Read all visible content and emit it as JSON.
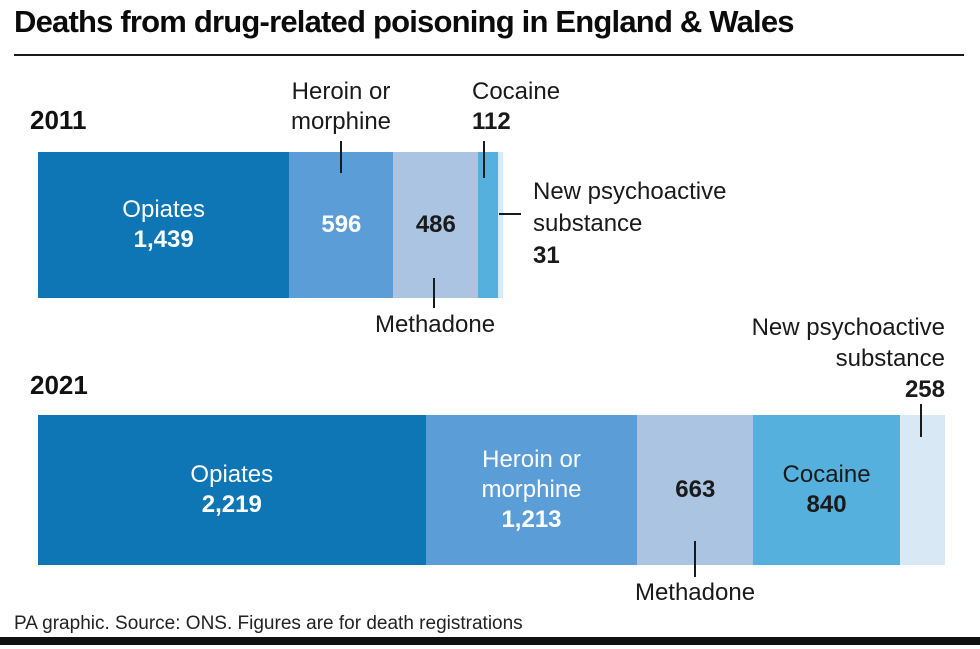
{
  "title": "Deaths from drug-related poisoning in England & Wales",
  "source_note": "PA graphic. Source: ONS. Figures are for death registrations",
  "colors": {
    "opiates": "#0e76b5",
    "heroin_or_morphine": "#5b9dd6",
    "methadone": "#aac4e1",
    "cocaine": "#56b0dd",
    "new_psychoactive_substance": "#d8e8f5",
    "text_dark": "#1a1a1a",
    "text_light": "#ffffff",
    "rule": "#1a1a1a"
  },
  "chart_data": {
    "type": "bar",
    "subtype": "horizontal-stacked",
    "unit": "deaths",
    "title": "Deaths from drug-related poisoning in England & Wales",
    "bars": [
      {
        "year": "2011",
        "segments": [
          {
            "drug": "Opiates",
            "deaths": 1439,
            "color": "#0e76b5",
            "inside_label": [
              "Opiates",
              "1,439"
            ],
            "text_color": "#ffffff"
          },
          {
            "drug": "Heroin or morphine",
            "deaths": 596,
            "color": "#5b9dd6",
            "inside_label": [
              "596"
            ],
            "text_color": "#ffffff"
          },
          {
            "drug": "Methadone",
            "deaths": 486,
            "color": "#aac4e1",
            "inside_label": [
              "486"
            ],
            "text_color": "#1a1a1a"
          },
          {
            "drug": "Cocaine",
            "deaths": 112,
            "color": "#56b0dd",
            "inside_label": [],
            "text_color": "#1a1a1a"
          },
          {
            "drug": "New psychoactive substance",
            "deaths": 31,
            "color": "#d8e8f5",
            "inside_label": [],
            "text_color": "#1a1a1a"
          }
        ]
      },
      {
        "year": "2021",
        "segments": [
          {
            "drug": "Opiates",
            "deaths": 2219,
            "color": "#0e76b5",
            "inside_label": [
              "Opiates",
              "2,219"
            ],
            "text_color": "#ffffff"
          },
          {
            "drug": "Heroin or morphine",
            "deaths": 1213,
            "color": "#5b9dd6",
            "inside_label": [
              "Heroin or",
              "morphine",
              "1,213"
            ],
            "text_color": "#ffffff"
          },
          {
            "drug": "Methadone",
            "deaths": 663,
            "color": "#aac4e1",
            "inside_label": [
              "663"
            ],
            "text_color": "#1a1a1a"
          },
          {
            "drug": "Cocaine",
            "deaths": 840,
            "color": "#56b0dd",
            "inside_label": [
              "Cocaine",
              "840"
            ],
            "text_color": "#1a1a1a"
          },
          {
            "drug": "New psychoactive substance",
            "deaths": 258,
            "color": "#d8e8f5",
            "inside_label": [],
            "text_color": "#1a1a1a"
          }
        ]
      }
    ]
  },
  "callouts": {
    "year_2011": "2011",
    "year_2021": "2021",
    "heroin_2011": [
      "Heroin or",
      "morphine"
    ],
    "cocaine_2011": [
      "Cocaine",
      "112"
    ],
    "nps_2011": [
      "New psychoactive",
      "substance",
      "31"
    ],
    "methadone_2011": "Methadone",
    "nps_2021": [
      "New psychoactive",
      "substance",
      "258"
    ],
    "methadone_2021": "Methadone"
  }
}
